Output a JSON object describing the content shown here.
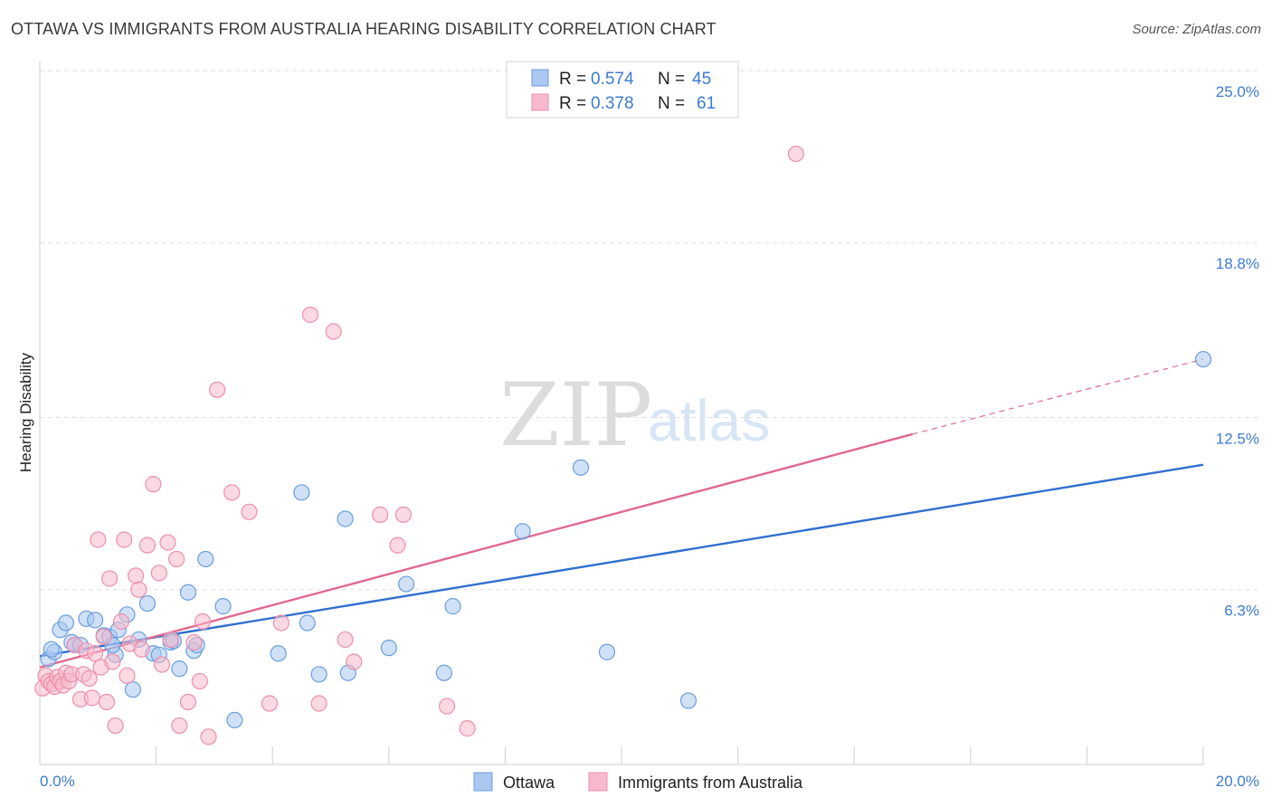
{
  "title": "OTTAWA VS IMMIGRANTS FROM AUSTRALIA HEARING DISABILITY CORRELATION CHART",
  "source": "Source: ZipAtlas.com",
  "watermark": {
    "zip": "ZIP",
    "atlas": "atlas"
  },
  "legend": {
    "rows": [
      {
        "r_label": "R = ",
        "r_value": "0.574",
        "n_label": "N = ",
        "n_value": "45"
      },
      {
        "r_label": "R = ",
        "r_value": "0.378",
        "n_label": "N = ",
        "n_value": "61"
      }
    ]
  },
  "bottom_legend": [
    "Ottawa",
    "Immigrants from Australia"
  ],
  "colors": {
    "ottawa_fill": "#aac8f0",
    "ottawa_stroke": "#6a9ddf",
    "ottawa_line": "#2f6fcf",
    "aus_fill": "#f7b9cb",
    "aus_stroke": "#ec8fab",
    "aus_line": "#e0688f",
    "tick_text": "#3d7bd0",
    "grid": "#dedede"
  },
  "chart_data": {
    "type": "scatter",
    "title": "OTTAWA VS IMMIGRANTS FROM AUSTRALIA HEARING DISABILITY CORRELATION CHART",
    "xlabel": "",
    "ylabel": "Hearing Disability",
    "xlim": [
      0.0,
      20.0
    ],
    "ylim": [
      0.0,
      25.0
    ],
    "x_tick_labels": [
      "0.0%",
      "20.0%"
    ],
    "y_ticks": [
      6.3,
      12.5,
      18.8,
      25.0
    ],
    "y_tick_labels": [
      "6.3%",
      "12.5%",
      "18.8%",
      "25.0%"
    ],
    "grid": true,
    "legend_position": "top-center",
    "series": [
      {
        "name": "Ottawa",
        "x": [
          0.15,
          0.25,
          0.35,
          0.45,
          0.55,
          0.6,
          0.7,
          0.8,
          0.95,
          1.1,
          1.2,
          1.3,
          1.35,
          1.5,
          1.6,
          1.7,
          1.85,
          1.95,
          2.05,
          2.25,
          2.3,
          2.4,
          2.55,
          2.65,
          2.85,
          3.15,
          3.35,
          4.1,
          4.5,
          4.6,
          4.8,
          5.25,
          5.3,
          6.0,
          6.3,
          6.95,
          7.1,
          8.3,
          9.3,
          9.75,
          11.15,
          20.0,
          0.2,
          1.25,
          2.7
        ],
        "y": [
          3.8,
          4.05,
          4.85,
          5.1,
          4.4,
          4.3,
          4.3,
          5.25,
          5.2,
          4.65,
          4.6,
          3.95,
          4.85,
          5.4,
          2.7,
          4.5,
          5.8,
          4.0,
          3.95,
          4.4,
          4.45,
          3.45,
          6.2,
          4.1,
          7.4,
          5.7,
          1.6,
          4.0,
          9.8,
          5.1,
          3.25,
          8.85,
          3.3,
          4.2,
          6.5,
          3.3,
          5.7,
          8.4,
          10.7,
          4.05,
          2.3,
          14.6,
          4.15,
          4.3,
          4.3
        ],
        "trend": {
          "x": [
            0.0,
            20.0
          ],
          "y": [
            3.9,
            10.8
          ]
        }
      },
      {
        "name": "Immigrants from Australia",
        "x": [
          0.05,
          0.1,
          0.15,
          0.2,
          0.25,
          0.3,
          0.35,
          0.4,
          0.45,
          0.5,
          0.55,
          0.6,
          0.7,
          0.75,
          0.8,
          0.85,
          0.9,
          0.95,
          1.0,
          1.05,
          1.1,
          1.15,
          1.2,
          1.25,
          1.3,
          1.4,
          1.45,
          1.5,
          1.55,
          1.65,
          1.7,
          1.75,
          1.85,
          1.95,
          2.05,
          2.1,
          2.2,
          2.25,
          2.35,
          2.4,
          2.55,
          2.65,
          2.75,
          2.8,
          2.9,
          3.05,
          3.3,
          3.6,
          3.95,
          4.15,
          4.65,
          4.8,
          5.05,
          5.25,
          5.4,
          5.85,
          6.15,
          6.25,
          7.0,
          7.35,
          13.0
        ],
        "y": [
          2.75,
          3.2,
          3.0,
          2.9,
          2.8,
          3.15,
          3.0,
          2.85,
          3.3,
          3.0,
          3.25,
          4.3,
          2.35,
          3.25,
          4.1,
          3.1,
          2.4,
          4.0,
          8.1,
          3.5,
          4.6,
          2.25,
          6.7,
          3.7,
          1.4,
          5.15,
          8.1,
          3.2,
          4.35,
          6.8,
          6.3,
          4.15,
          7.9,
          10.1,
          6.9,
          3.6,
          8.0,
          4.5,
          7.4,
          1.4,
          2.25,
          4.4,
          3.0,
          5.15,
          1.0,
          13.5,
          9.8,
          9.1,
          2.2,
          5.1,
          16.2,
          2.2,
          15.6,
          4.5,
          3.7,
          9.0,
          7.9,
          9.0,
          2.1,
          1.3,
          22.0
        ],
        "trend": {
          "x": [
            0.0,
            15.0
          ],
          "y": [
            3.5,
            11.9
          ]
        },
        "trend_dashed": {
          "x": [
            15.0,
            20.0
          ],
          "y": [
            11.9,
            14.6
          ]
        }
      }
    ]
  }
}
